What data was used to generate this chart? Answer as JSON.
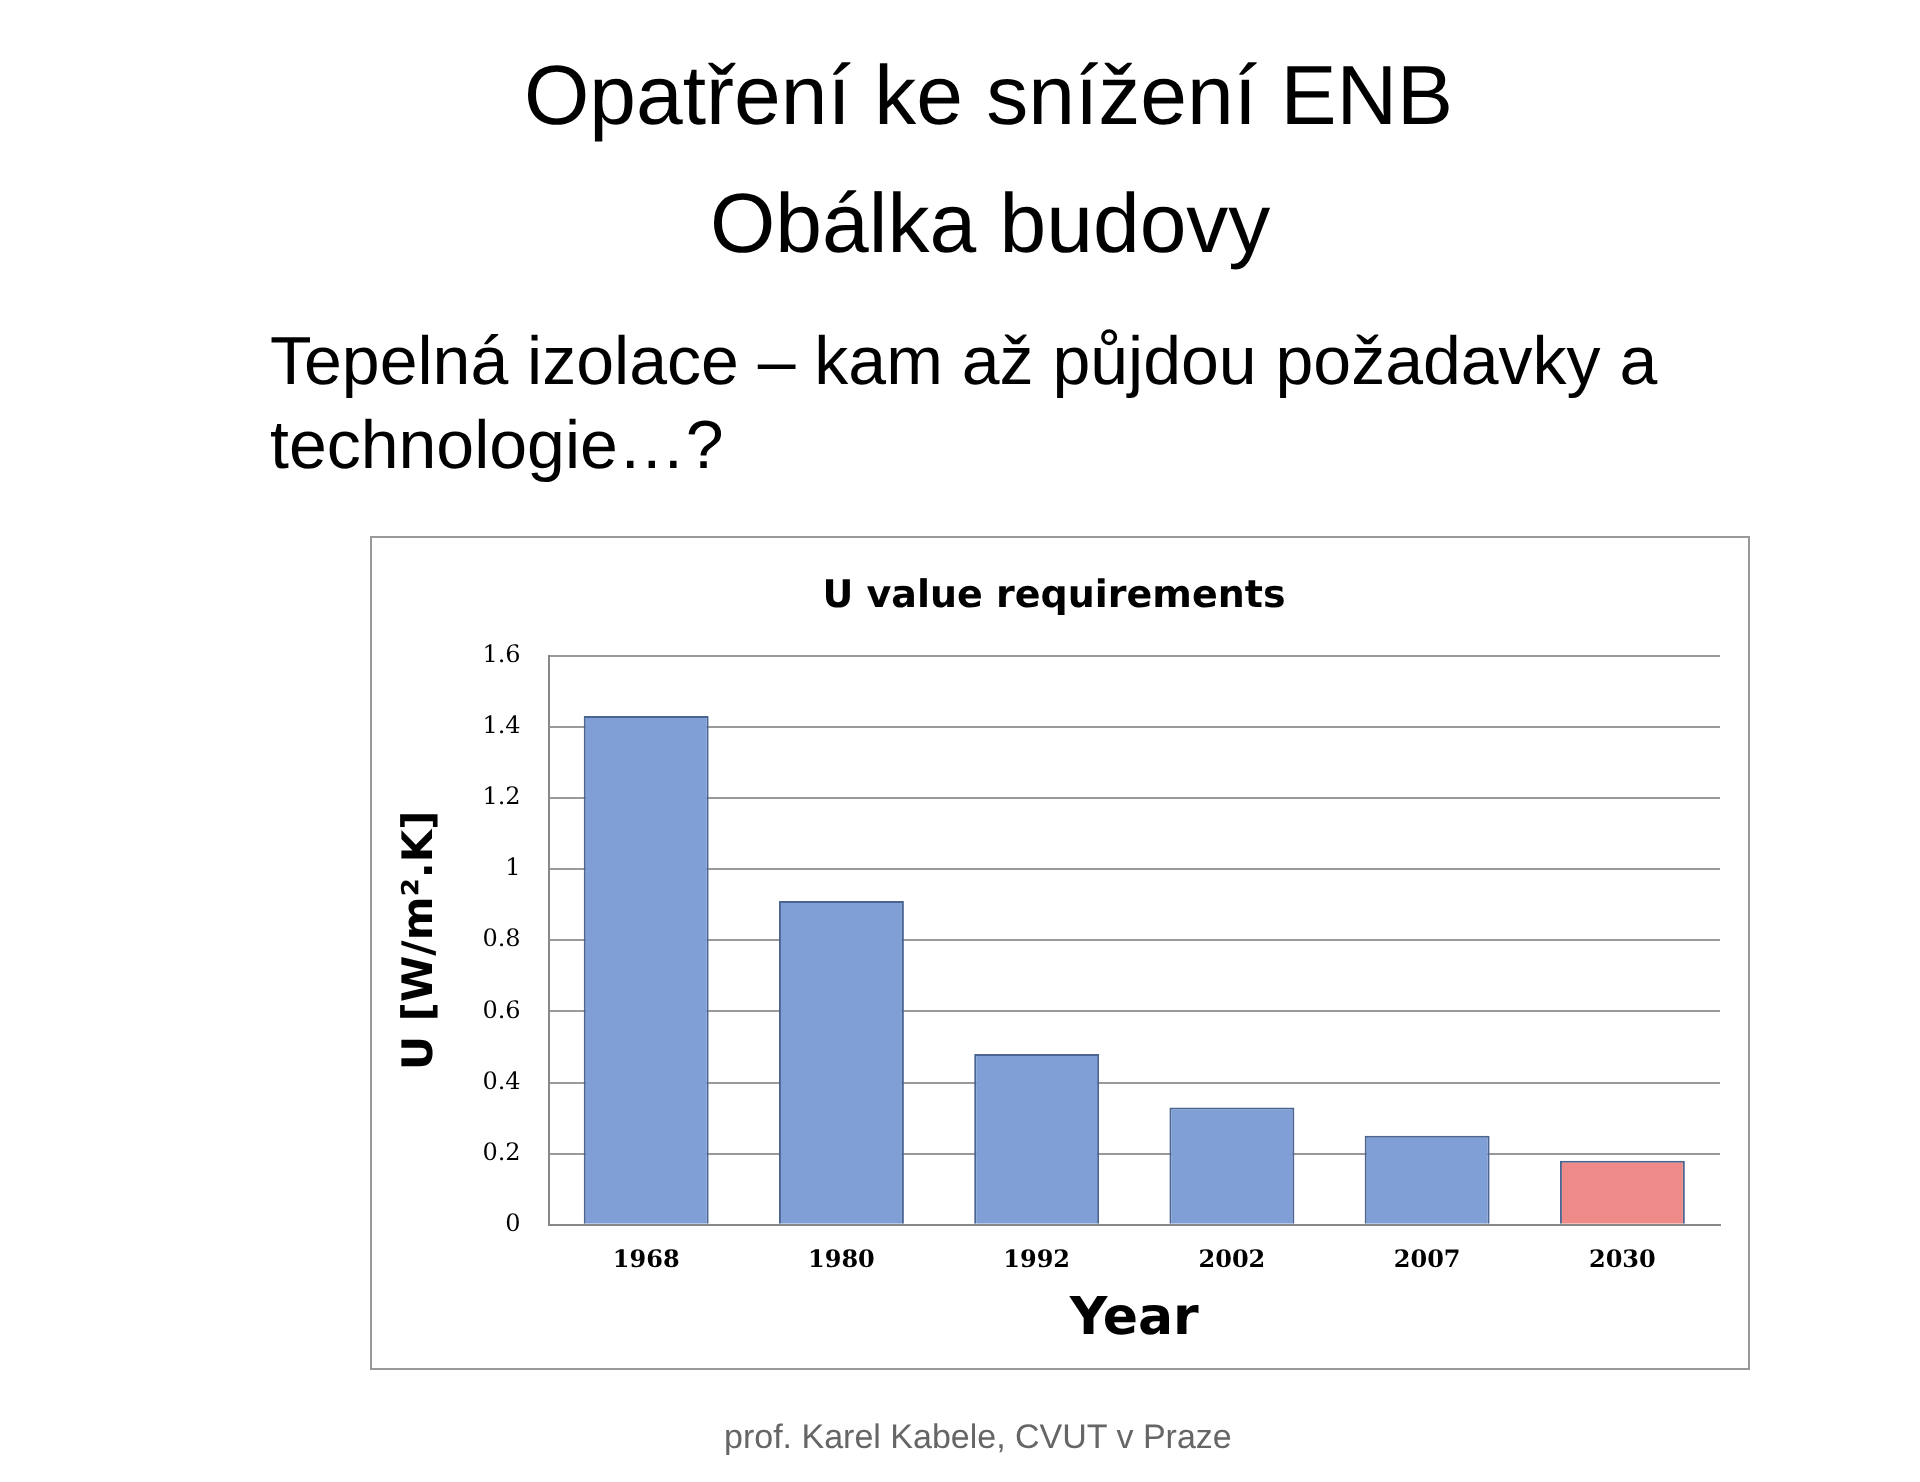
{
  "chart_data": {
    "type": "bar",
    "title": "U value requirements",
    "xlabel": "Year",
    "ylabel": "U [W/m².K]",
    "categories": [
      "1968",
      "1980",
      "1992",
      "2002",
      "2007",
      "2030"
    ],
    "values": [
      1.43,
      0.91,
      0.48,
      0.33,
      0.25,
      0.18
    ],
    "colors": [
      "#7f9fd6",
      "#7f9fd6",
      "#7f9fd6",
      "#7f9fd6",
      "#7f9fd6",
      "#ee8a88"
    ],
    "ylim": [
      0,
      1.6
    ],
    "yticks": [
      0,
      0.2,
      0.4,
      0.6,
      0.8,
      1,
      1.2,
      1.4,
      1.6
    ],
    "grid": "y",
    "legend": false,
    "annotations": [
      "Opatření ke snížení ENB",
      "Obálka budovy",
      "Tepelná izolace – kam až půjdou požadavky a technologie…?",
      "prof. Karel Kabele, CVUT v Praze"
    ]
  }
}
